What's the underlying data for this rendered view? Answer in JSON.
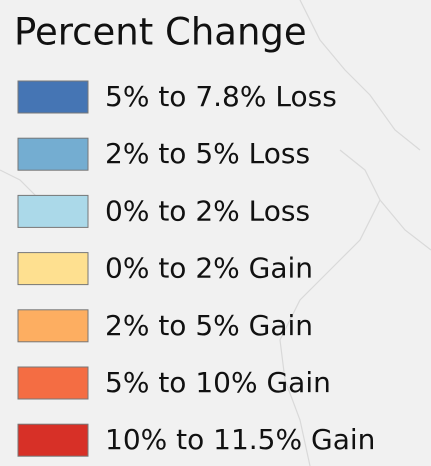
{
  "legend": {
    "title": "Percent Change",
    "items": [
      {
        "label": "5% to 7.8% Loss",
        "color": "#4575b4"
      },
      {
        "label": "2% to 5% Loss",
        "color": "#74add1"
      },
      {
        "label": "0% to 2% Loss",
        "color": "#abd9e9"
      },
      {
        "label": "0% to 2% Gain",
        "color": "#fee090"
      },
      {
        "label": "2% to 5% Gain",
        "color": "#fdae61"
      },
      {
        "label": "5% to 10% Gain",
        "color": "#f46d43"
      },
      {
        "label": "10% to 11.5% Gain",
        "color": "#d73027"
      }
    ]
  }
}
